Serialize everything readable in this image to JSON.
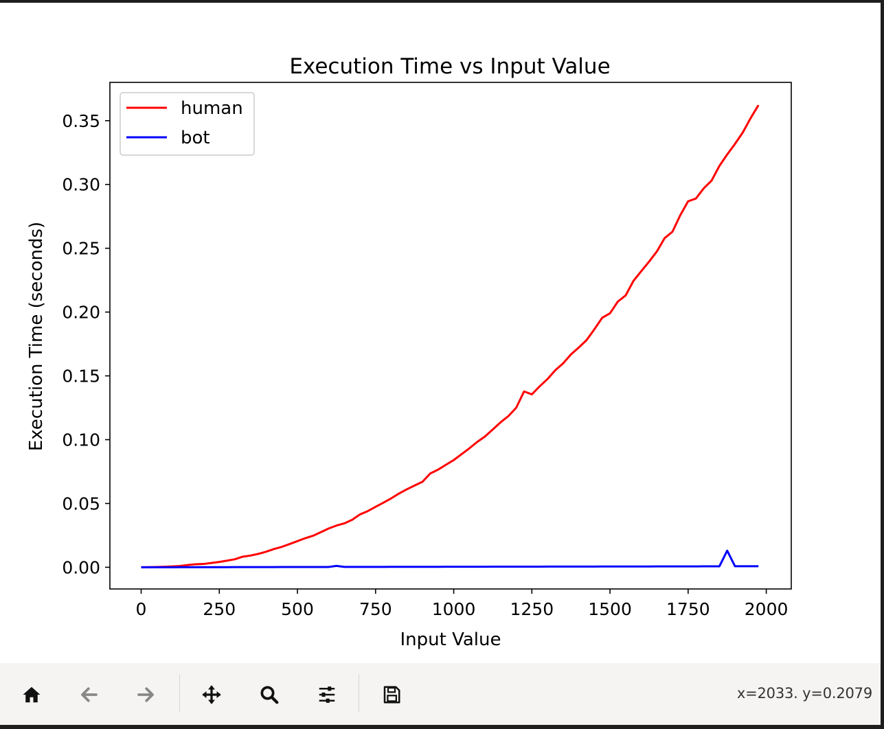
{
  "chart_data": {
    "type": "line",
    "title": "Execution Time vs Input Value",
    "xlabel": "Input Value",
    "ylabel": "Execution Time (seconds)",
    "xlim": [
      -100,
      2080
    ],
    "ylim": [
      -0.017,
      0.38
    ],
    "xticks": [
      0,
      250,
      500,
      750,
      1000,
      1250,
      1500,
      1750,
      2000
    ],
    "xtick_labels": [
      "0",
      "250",
      "500",
      "750",
      "1000",
      "1250",
      "1500",
      "1750",
      "2000"
    ],
    "yticks": [
      0.0,
      0.05,
      0.1,
      0.15,
      0.2,
      0.25,
      0.3,
      0.35
    ],
    "ytick_labels": [
      "0.00",
      "0.05",
      "0.10",
      "0.15",
      "0.20",
      "0.25",
      "0.30",
      "0.35"
    ],
    "grid": false,
    "legend_position": "top-left",
    "series": [
      {
        "name": "human",
        "color": "#ff0000",
        "x": [
          0,
          25,
          50,
          75,
          100,
          125,
          150,
          175,
          200,
          225,
          250,
          275,
          300,
          325,
          350,
          375,
          400,
          425,
          450,
          475,
          500,
          525,
          550,
          575,
          600,
          625,
          650,
          675,
          700,
          725,
          750,
          775,
          800,
          825,
          850,
          875,
          900,
          925,
          950,
          975,
          1000,
          1025,
          1050,
          1075,
          1100,
          1125,
          1150,
          1175,
          1200,
          1225,
          1250,
          1275,
          1300,
          1325,
          1350,
          1375,
          1400,
          1425,
          1450,
          1475,
          1500,
          1525,
          1550,
          1575,
          1600,
          1625,
          1650,
          1675,
          1700,
          1725,
          1750,
          1775,
          1800,
          1825,
          1850,
          1875,
          1900,
          1925,
          1950,
          1975
        ],
        "y": [
          0.0,
          0.0001,
          0.0002,
          0.0004,
          0.0007,
          0.001,
          0.0018,
          0.0024,
          0.0026,
          0.0034,
          0.0042,
          0.0052,
          0.0063,
          0.0083,
          0.0092,
          0.0105,
          0.0122,
          0.0143,
          0.016,
          0.0182,
          0.0205,
          0.0228,
          0.0247,
          0.0275,
          0.0304,
          0.0327,
          0.0344,
          0.0372,
          0.0414,
          0.044,
          0.0474,
          0.0506,
          0.054,
          0.0578,
          0.0611,
          0.0641,
          0.067,
          0.0735,
          0.0765,
          0.0803,
          0.084,
          0.0886,
          0.0932,
          0.0982,
          0.1025,
          0.108,
          0.1136,
          0.1185,
          0.125,
          0.1378,
          0.1355,
          0.1418,
          0.1475,
          0.1544,
          0.1598,
          0.1668,
          0.1722,
          0.178,
          0.1865,
          0.1955,
          0.199,
          0.2082,
          0.213,
          0.2244,
          0.232,
          0.2395,
          0.2475,
          0.258,
          0.263,
          0.276,
          0.2868,
          0.289,
          0.297,
          0.303,
          0.3145,
          0.3235,
          0.3318,
          0.3408,
          0.352,
          0.3622
        ]
      },
      {
        "name": "bot",
        "color": "#0000ff",
        "x": [
          0,
          25,
          50,
          75,
          100,
          125,
          150,
          175,
          200,
          225,
          250,
          275,
          300,
          325,
          350,
          375,
          400,
          425,
          450,
          475,
          500,
          525,
          550,
          575,
          600,
          625,
          650,
          675,
          700,
          725,
          750,
          775,
          800,
          825,
          850,
          875,
          900,
          925,
          950,
          975,
          1000,
          1025,
          1050,
          1075,
          1100,
          1125,
          1150,
          1175,
          1200,
          1225,
          1250,
          1275,
          1300,
          1325,
          1350,
          1375,
          1400,
          1425,
          1450,
          1475,
          1500,
          1525,
          1550,
          1575,
          1600,
          1625,
          1650,
          1675,
          1700,
          1725,
          1750,
          1775,
          1800,
          1825,
          1850,
          1875,
          1900,
          1925,
          1950,
          1975
        ],
        "y": [
          0.0,
          1e-05,
          2e-05,
          3e-05,
          4e-05,
          5e-05,
          6e-05,
          7e-05,
          8e-05,
          9e-05,
          0.0001,
          0.00011,
          0.00012,
          0.00013,
          0.00014,
          0.00015,
          0.00016,
          0.00017,
          0.00018,
          0.00019,
          0.0002,
          0.00021,
          0.00022,
          0.00023,
          0.00024,
          0.0011,
          0.00026,
          0.00027,
          0.00028,
          0.00029,
          0.0003,
          0.00031,
          0.00032,
          0.00033,
          0.00034,
          0.00035,
          0.00036,
          0.00037,
          0.00038,
          0.00039,
          0.0004,
          0.00041,
          0.00042,
          0.00043,
          0.00044,
          0.00045,
          0.00046,
          0.00047,
          0.00048,
          0.00049,
          0.0005,
          0.00051,
          0.00052,
          0.00053,
          0.00054,
          0.00055,
          0.00056,
          0.00057,
          0.00058,
          0.00059,
          0.0006,
          0.00061,
          0.00062,
          0.00063,
          0.00064,
          0.00065,
          0.00066,
          0.00067,
          0.00068,
          0.00069,
          0.0007,
          0.00071,
          0.00072,
          0.00073,
          0.00074,
          0.013,
          0.0008,
          0.0008,
          0.0008,
          0.0008
        ]
      }
    ]
  },
  "toolbar": {
    "buttons": [
      {
        "icon": "home-icon",
        "name": "home-button"
      },
      {
        "icon": "back-arrow-icon",
        "name": "back-button"
      },
      {
        "icon": "forward-arrow-icon",
        "name": "forward-button"
      },
      {
        "icon": "pan-move-icon",
        "name": "pan-button"
      },
      {
        "icon": "zoom-magnifier-icon",
        "name": "zoom-button"
      },
      {
        "icon": "sliders-icon",
        "name": "configure-subplots-button"
      },
      {
        "icon": "save-floppy-icon",
        "name": "save-button"
      }
    ],
    "coords": "x=2033. y=0.2079"
  }
}
